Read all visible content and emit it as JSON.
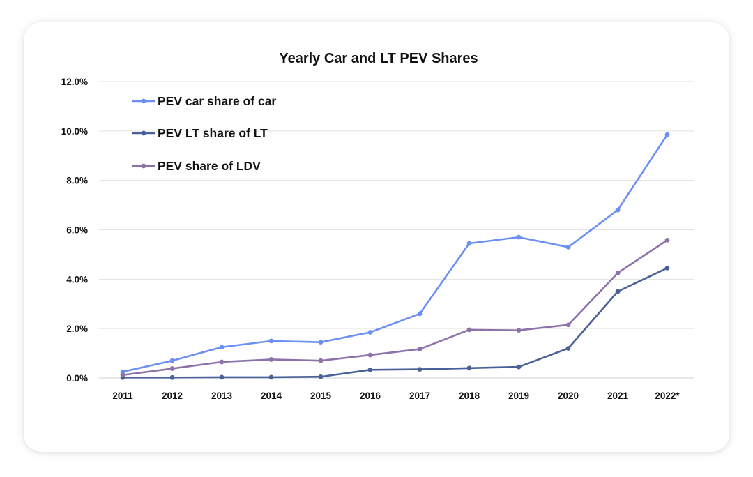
{
  "chart_data": {
    "type": "line",
    "title": "Yearly Car and LT PEV Shares",
    "xlabel": "",
    "ylabel": "",
    "categories": [
      "2011",
      "2012",
      "2013",
      "2014",
      "2015",
      "2016",
      "2017",
      "2018",
      "2019",
      "2020",
      "2021",
      "2022*"
    ],
    "ylim": [
      0,
      12
    ],
    "yticks": [
      0,
      2,
      4,
      6,
      8,
      10,
      12
    ],
    "ytick_labels": [
      "0.0%",
      "2.0%",
      "4.0%",
      "6.0%",
      "8.0%",
      "10.0%",
      "12.0%"
    ],
    "grid": true,
    "legend_position": "top-left",
    "series": [
      {
        "name": "PEV car share of car",
        "color": "#6b8ff2",
        "values": [
          0.25,
          0.7,
          1.25,
          1.5,
          1.45,
          1.85,
          2.6,
          5.45,
          5.7,
          5.3,
          6.8,
          9.85
        ]
      },
      {
        "name": "PEV LT share of LT",
        "color": "#4a6197",
        "values": [
          0.02,
          0.02,
          0.03,
          0.03,
          0.05,
          0.33,
          0.35,
          0.4,
          0.45,
          1.2,
          3.5,
          4.45
        ]
      },
      {
        "name": "PEV share of LDV",
        "color": "#8c72a8",
        "values": [
          0.12,
          0.38,
          0.65,
          0.75,
          0.7,
          0.93,
          1.17,
          1.95,
          1.93,
          2.15,
          4.25,
          5.58
        ]
      }
    ]
  }
}
